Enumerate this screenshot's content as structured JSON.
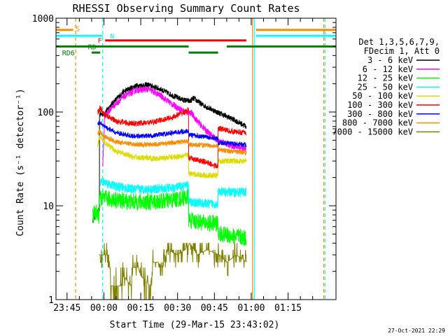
{
  "chart_data": {
    "type": "line",
    "title": "RHESSI Observing Summary Count Rates",
    "xlabel": "Start Time (29-Mar-15 23:43:02)",
    "ylabel": "Count Rate (s⁻¹ detector⁻¹)",
    "yscale": "log",
    "ylim": [
      1,
      1000
    ],
    "xlim_minutes": [
      -19.5,
      94.5
    ],
    "x_ticks": [
      {
        "label": "23:45",
        "minute": -15
      },
      {
        "label": "00:00",
        "minute": 0
      },
      {
        "label": "00:15",
        "minute": 15
      },
      {
        "label": "00:30",
        "minute": 30
      },
      {
        "label": "00:45",
        "minute": 45
      },
      {
        "label": "01:00",
        "minute": 60
      },
      {
        "label": "01:15",
        "minute": 75
      }
    ],
    "y_ticks": [
      {
        "label": "1",
        "value": 1
      },
      {
        "label": "10",
        "value": 10
      },
      {
        "label": "100",
        "value": 100
      },
      {
        "label": "1000",
        "value": 1000
      }
    ],
    "legend": {
      "placement": "right",
      "header": [
        "Det 1,3,5,6,7,9,",
        "FDecim 1, Att 0"
      ],
      "entries": [
        {
          "label": "3 - 6 keV",
          "color": "#000000"
        },
        {
          "label": "6 - 12 keV",
          "color": "#ff00ff"
        },
        {
          "label": "12 - 25 keV",
          "color": "#00ff00"
        },
        {
          "label": "25 - 50 keV",
          "color": "#00ffff"
        },
        {
          "label": "50 - 100 keV",
          "color": "#dcdc00"
        },
        {
          "label": "100 - 300 keV",
          "color": "#ff0000"
        },
        {
          "label": "300 - 800 keV",
          "color": "#0000ff"
        },
        {
          "label": "800 - 7000 keV",
          "color": "#ff8c00"
        },
        {
          "label": "7000 - 15000 keV",
          "color": "#808000"
        }
      ]
    },
    "flag_bars": [
      {
        "label": "S",
        "color": "#ff8c00",
        "y": 750,
        "segments": [
          [
            -19.5,
            -12.5
          ],
          [
            62,
            94.5
          ]
        ]
      },
      {
        "label": "N",
        "color": "#00ffff",
        "y": 650,
        "segments": [
          [
            -19.5,
            -0.5
          ],
          [
            62,
            94.5
          ]
        ]
      },
      {
        "label": "F",
        "color": "#ff0000",
        "y": 580,
        "segments": [
          [
            0.5,
            58
          ]
        ]
      },
      {
        "label": "RD",
        "color": "#008000",
        "y": 500,
        "segments": [
          [
            -19.5,
            34.5
          ],
          [
            50,
            94.5
          ]
        ]
      },
      {
        "label": "",
        "color": "#008000",
        "y": 430,
        "segments": [
          [
            -5,
            -1.5
          ],
          [
            34.5,
            46.5
          ]
        ]
      },
      {
        "label": "RD6",
        "color": "#008000",
        "y": 430,
        "segments": []
      }
    ],
    "vlines": [
      {
        "minute": -11.5,
        "color": "#ff8c00",
        "style": "dashed"
      },
      {
        "minute": -0.5,
        "color": "#00ffff",
        "style": "dashed"
      },
      {
        "minute": 60.5,
        "color": "#ff8c00",
        "style": "solid"
      },
      {
        "minute": 61.2,
        "color": "#00ffff",
        "style": "solid"
      },
      {
        "minute": 89.5,
        "color": "#ff8c00",
        "style": "dashed"
      },
      {
        "minute": 90,
        "color": "#00ffff",
        "style": "dashed"
      }
    ],
    "data_start_minute": -4.5,
    "data_end_minute": 58,
    "series": [
      {
        "name": "3 - 6 keV",
        "color": "#000000",
        "noise": 0.03,
        "points": [
          [
            -4.5,
            7
          ],
          [
            -2,
            9
          ],
          [
            -1.8,
            9
          ],
          [
            -1.4,
            95
          ],
          [
            0,
            95
          ],
          [
            3,
            120
          ],
          [
            8,
            165
          ],
          [
            13,
            190
          ],
          [
            18,
            195
          ],
          [
            23,
            175
          ],
          [
            28,
            150
          ],
          [
            32,
            135
          ],
          [
            35,
            130
          ],
          [
            36.5,
            140
          ],
          [
            40,
            120
          ],
          [
            46,
            100
          ],
          [
            52,
            85
          ],
          [
            58,
            70
          ]
        ]
      },
      {
        "name": "6 - 12 keV",
        "color": "#ff00ff",
        "noise": 0.035,
        "points": [
          [
            -0.5,
            25
          ],
          [
            0.3,
            90
          ],
          [
            3,
            110
          ],
          [
            8,
            145
          ],
          [
            13,
            170
          ],
          [
            18,
            175
          ],
          [
            23,
            150
          ],
          [
            28,
            120
          ],
          [
            33,
            100
          ],
          [
            35.5,
            98
          ],
          [
            38,
            80
          ],
          [
            42,
            62
          ],
          [
            46,
            50
          ],
          [
            52,
            44
          ],
          [
            58,
            40
          ]
        ]
      },
      {
        "name": "12 - 25 keV",
        "color": "#00ff00",
        "noise": 0.09,
        "points": [
          [
            -4.5,
            8
          ],
          [
            -3,
            8.5
          ],
          [
            -2,
            7.5
          ],
          [
            -1.5,
            12
          ],
          [
            0,
            12
          ],
          [
            5,
            11.5
          ],
          [
            12,
            11
          ],
          [
            20,
            11
          ],
          [
            28,
            11.5
          ],
          [
            34.5,
            12.5
          ],
          [
            35,
            7
          ],
          [
            42,
            6.5
          ],
          [
            46.5,
            6.5
          ],
          [
            47,
            5
          ],
          [
            52,
            4.8
          ],
          [
            58,
            4.5
          ]
        ]
      },
      {
        "name": "25 - 50 keV",
        "color": "#00ffff",
        "noise": 0.05,
        "points": [
          [
            -1.5,
            18
          ],
          [
            0,
            18
          ],
          [
            5,
            16
          ],
          [
            12,
            15
          ],
          [
            20,
            15
          ],
          [
            28,
            15.5
          ],
          [
            34.5,
            16.5
          ],
          [
            35,
            11
          ],
          [
            42,
            10.5
          ],
          [
            46.5,
            10.5
          ],
          [
            47,
            14
          ],
          [
            52,
            14
          ],
          [
            58,
            14
          ]
        ]
      },
      {
        "name": "50 - 100 keV",
        "color": "#dcdc00",
        "noise": 0.03,
        "points": [
          [
            -2.5,
            45
          ],
          [
            -1.5,
            55
          ],
          [
            0,
            48
          ],
          [
            5,
            38
          ],
          [
            12,
            33
          ],
          [
            20,
            32
          ],
          [
            28,
            33
          ],
          [
            34.5,
            35
          ],
          [
            35,
            22
          ],
          [
            42,
            21
          ],
          [
            46.5,
            21
          ],
          [
            47,
            30
          ],
          [
            52,
            30
          ],
          [
            58,
            30
          ]
        ]
      },
      {
        "name": "100 - 300 keV",
        "color": "#ff0000",
        "noise": 0.03,
        "points": [
          [
            -2.5,
            100
          ],
          [
            -1.5,
            110
          ],
          [
            0,
            95
          ],
          [
            5,
            80
          ],
          [
            12,
            75
          ],
          [
            20,
            78
          ],
          [
            28,
            88
          ],
          [
            33,
            100
          ],
          [
            34.5,
            105
          ],
          [
            35,
            32
          ],
          [
            42,
            29
          ],
          [
            46.5,
            26
          ],
          [
            47,
            67
          ],
          [
            52,
            62
          ],
          [
            58,
            60
          ]
        ]
      },
      {
        "name": "300 - 800 keV",
        "color": "#0000ff",
        "noise": 0.025,
        "points": [
          [
            -2.5,
            75
          ],
          [
            -1.5,
            78
          ],
          [
            0,
            70
          ],
          [
            5,
            60
          ],
          [
            12,
            55
          ],
          [
            20,
            56
          ],
          [
            28,
            60
          ],
          [
            34.5,
            63
          ],
          [
            35,
            57
          ],
          [
            42,
            54
          ],
          [
            46.5,
            52
          ],
          [
            47,
            47
          ],
          [
            52,
            46
          ],
          [
            58,
            45
          ]
        ]
      },
      {
        "name": "800 - 7000 keV",
        "color": "#ff8c00",
        "noise": 0.025,
        "points": [
          [
            -2.5,
            60
          ],
          [
            -1.5,
            62
          ],
          [
            0,
            55
          ],
          [
            5,
            48
          ],
          [
            12,
            45
          ],
          [
            20,
            45
          ],
          [
            28,
            47
          ],
          [
            34.5,
            49
          ],
          [
            35,
            45
          ],
          [
            42,
            44
          ],
          [
            46.5,
            43
          ],
          [
            47,
            40
          ],
          [
            52,
            38
          ],
          [
            58,
            37
          ]
        ]
      },
      {
        "name": "7000 - 15000 keV",
        "color": "#808000",
        "noise": 0,
        "points": [
          [
            -2,
            3
          ],
          [
            2,
            3
          ],
          [
            3,
            1.4
          ],
          [
            7,
            1.4
          ],
          [
            8,
            1.8
          ],
          [
            11,
            1.4
          ],
          [
            12,
            2.2
          ],
          [
            14,
            2.2
          ],
          [
            15,
            1.8
          ],
          [
            19,
            1.4
          ],
          [
            20,
            2.5
          ],
          [
            22,
            2.5
          ],
          [
            24,
            2.2
          ],
          [
            26,
            3.4
          ],
          [
            30,
            3.0
          ],
          [
            33,
            3.4
          ],
          [
            35,
            4.0
          ],
          [
            38,
            3.0
          ],
          [
            42,
            3.4
          ],
          [
            47,
            3.0
          ],
          [
            50,
            2.5
          ],
          [
            54,
            3.0
          ],
          [
            58,
            2.5
          ]
        ]
      }
    ],
    "footer_timestamp": "27-Oct-2021 22:29"
  }
}
